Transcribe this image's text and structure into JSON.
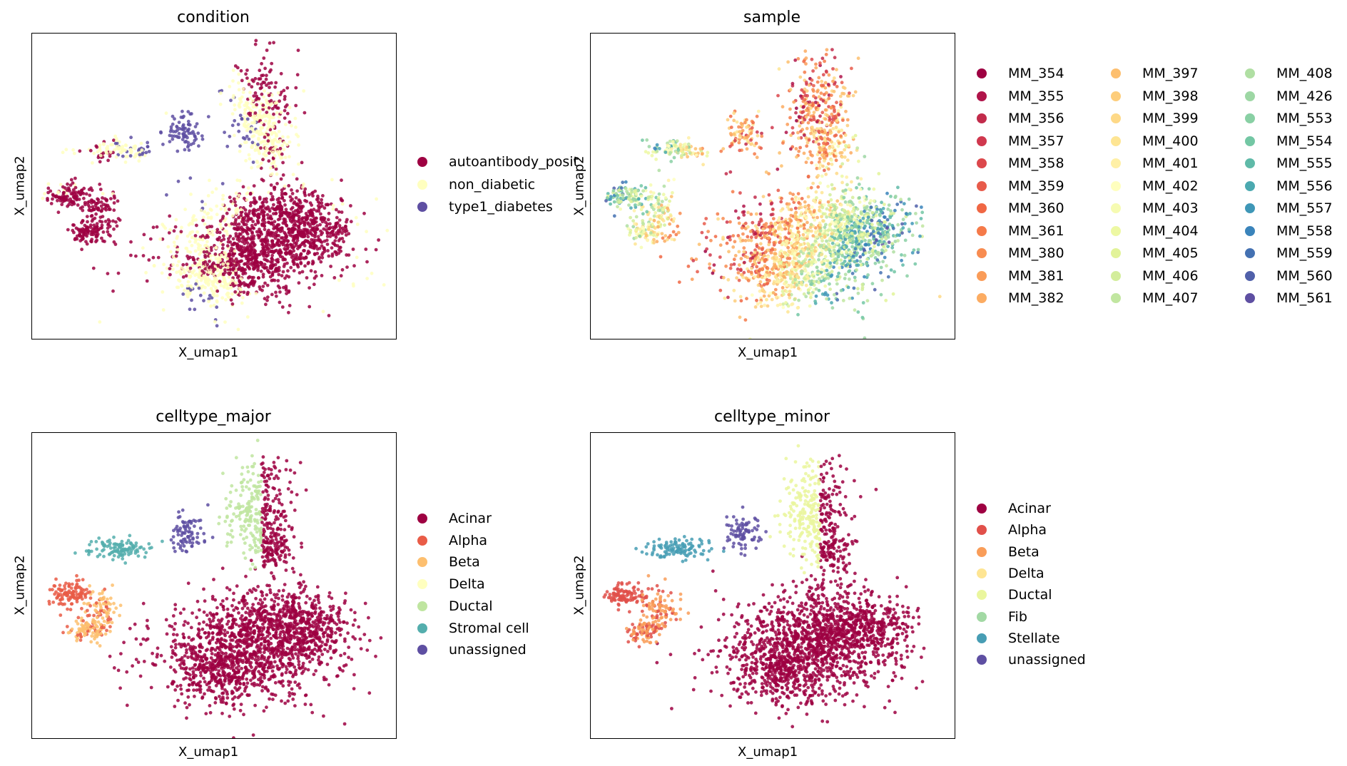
{
  "panels": [
    {
      "key": "condition",
      "title": "condition",
      "xlabel": "X_umap1",
      "ylabel": "X_umap2",
      "legend": [
        {
          "label": "autoantibody_posit",
          "color": "#9e0142"
        },
        {
          "label": "non_diabetic",
          "color": "#ffffbf"
        },
        {
          "label": "type1_diabetes",
          "color": "#5e4fa2"
        }
      ]
    },
    {
      "key": "sample",
      "title": "sample",
      "xlabel": "X_umap1",
      "ylabel": "X_umap2",
      "legend": [
        {
          "label": "MM_354",
          "color": "#9e0142"
        },
        {
          "label": "MM_355",
          "color": "#b0144a"
        },
        {
          "label": "MM_356",
          "color": "#c22b4b"
        },
        {
          "label": "MM_357",
          "color": "#d0384e"
        },
        {
          "label": "MM_358",
          "color": "#dc484c"
        },
        {
          "label": "MM_359",
          "color": "#e85b4b"
        },
        {
          "label": "MM_360",
          "color": "#f06744"
        },
        {
          "label": "MM_361",
          "color": "#f57a49"
        },
        {
          "label": "MM_380",
          "color": "#f88c51"
        },
        {
          "label": "MM_381",
          "color": "#fa9c58"
        },
        {
          "label": "MM_382",
          "color": "#fcac62"
        },
        {
          "label": "MM_397",
          "color": "#fdbf6f"
        },
        {
          "label": "MM_398",
          "color": "#fdcd7b"
        },
        {
          "label": "MM_399",
          "color": "#fed987"
        },
        {
          "label": "MM_400",
          "color": "#fee593"
        },
        {
          "label": "MM_401",
          "color": "#fff0a6"
        },
        {
          "label": "MM_402",
          "color": "#ffffbf"
        },
        {
          "label": "MM_403",
          "color": "#f6fbb2"
        },
        {
          "label": "MM_404",
          "color": "#edf8a3"
        },
        {
          "label": "MM_405",
          "color": "#e2f399"
        },
        {
          "label": "MM_406",
          "color": "#d3ed9b"
        },
        {
          "label": "MM_407",
          "color": "#c1e6a0"
        },
        {
          "label": "MM_408",
          "color": "#b0dfa3"
        },
        {
          "label": "MM_426",
          "color": "#9dd7a4"
        },
        {
          "label": "MM_553",
          "color": "#89d0a4"
        },
        {
          "label": "MM_554",
          "color": "#73c7a4"
        },
        {
          "label": "MM_555",
          "color": "#5fbaa8"
        },
        {
          "label": "MM_556",
          "color": "#4ba9b0"
        },
        {
          "label": "MM_557",
          "color": "#3f97b7"
        },
        {
          "label": "MM_558",
          "color": "#3a84bb"
        },
        {
          "label": "MM_559",
          "color": "#4471b2"
        },
        {
          "label": "MM_560",
          "color": "#5060aa"
        },
        {
          "label": "MM_561",
          "color": "#5e4fa2"
        }
      ]
    },
    {
      "key": "celltype_major",
      "title": "celltype_major",
      "xlabel": "X_umap1",
      "ylabel": "X_umap2",
      "legend": [
        {
          "label": "Acinar",
          "color": "#9e0142"
        },
        {
          "label": "Alpha",
          "color": "#e95c47"
        },
        {
          "label": "Beta",
          "color": "#fdbf6f"
        },
        {
          "label": "Delta",
          "color": "#ffffbf"
        },
        {
          "label": "Ductal",
          "color": "#bfe5a0"
        },
        {
          "label": "Stromal cell",
          "color": "#54aead"
        },
        {
          "label": "unassigned",
          "color": "#5e4fa2"
        }
      ]
    },
    {
      "key": "celltype_minor",
      "title": "celltype_minor",
      "xlabel": "X_umap1",
      "ylabel": "X_umap2",
      "legend": [
        {
          "label": "Acinar",
          "color": "#9e0142"
        },
        {
          "label": "Alpha",
          "color": "#e1504a"
        },
        {
          "label": "Beta",
          "color": "#f99d59"
        },
        {
          "label": "Delta",
          "color": "#fee593"
        },
        {
          "label": "Ductal",
          "color": "#eaf69e"
        },
        {
          "label": "Fib",
          "color": "#a2d9a4"
        },
        {
          "label": "Stellate",
          "color": "#479db4"
        },
        {
          "label": "unassigned",
          "color": "#5e4fa2"
        }
      ]
    }
  ],
  "chart_data": [
    {
      "type": "scatter",
      "title": "condition",
      "xlabel": "X_umap1",
      "ylabel": "X_umap2",
      "series": [
        {
          "name": "autoantibody_posit"
        },
        {
          "name": "non_diabetic"
        },
        {
          "name": "type1_diabetes"
        }
      ],
      "grid": false,
      "legend": "right"
    },
    {
      "type": "scatter",
      "title": "sample",
      "xlabel": "X_umap1",
      "ylabel": "X_umap2",
      "series": [
        {
          "name": "MM_354"
        },
        {
          "name": "MM_355"
        },
        {
          "name": "MM_356"
        },
        {
          "name": "MM_357"
        },
        {
          "name": "MM_358"
        },
        {
          "name": "MM_359"
        },
        {
          "name": "MM_360"
        },
        {
          "name": "MM_361"
        },
        {
          "name": "MM_380"
        },
        {
          "name": "MM_381"
        },
        {
          "name": "MM_382"
        },
        {
          "name": "MM_397"
        },
        {
          "name": "MM_398"
        },
        {
          "name": "MM_399"
        },
        {
          "name": "MM_400"
        },
        {
          "name": "MM_401"
        },
        {
          "name": "MM_402"
        },
        {
          "name": "MM_403"
        },
        {
          "name": "MM_404"
        },
        {
          "name": "MM_405"
        },
        {
          "name": "MM_406"
        },
        {
          "name": "MM_407"
        },
        {
          "name": "MM_408"
        },
        {
          "name": "MM_426"
        },
        {
          "name": "MM_553"
        },
        {
          "name": "MM_554"
        },
        {
          "name": "MM_555"
        },
        {
          "name": "MM_556"
        },
        {
          "name": "MM_557"
        },
        {
          "name": "MM_558"
        },
        {
          "name": "MM_559"
        },
        {
          "name": "MM_560"
        },
        {
          "name": "MM_561"
        }
      ],
      "grid": false,
      "legend": "right"
    },
    {
      "type": "scatter",
      "title": "celltype_major",
      "xlabel": "X_umap1",
      "ylabel": "X_umap2",
      "series": [
        {
          "name": "Acinar"
        },
        {
          "name": "Alpha"
        },
        {
          "name": "Beta"
        },
        {
          "name": "Delta"
        },
        {
          "name": "Ductal"
        },
        {
          "name": "Stromal cell"
        },
        {
          "name": "unassigned"
        }
      ],
      "grid": false,
      "legend": "right"
    },
    {
      "type": "scatter",
      "title": "celltype_minor",
      "xlabel": "X_umap1",
      "ylabel": "X_umap2",
      "series": [
        {
          "name": "Acinar"
        },
        {
          "name": "Alpha"
        },
        {
          "name": "Beta"
        },
        {
          "name": "Delta"
        },
        {
          "name": "Ductal"
        },
        {
          "name": "Fib"
        },
        {
          "name": "Stellate"
        },
        {
          "name": "unassigned"
        }
      ],
      "grid": false,
      "legend": "right"
    }
  ]
}
